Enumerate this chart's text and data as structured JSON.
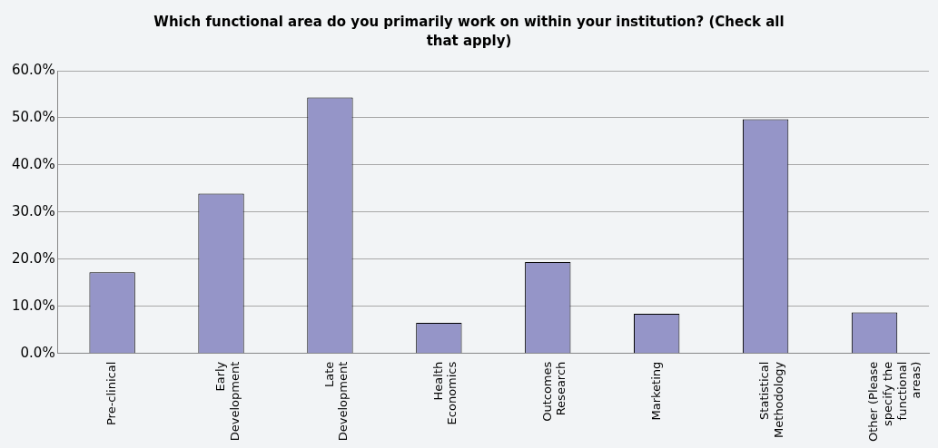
{
  "chart_data": {
    "type": "bar",
    "title": "Which functional area do you primarily work on within your institution? (Check all that apply)",
    "categories": [
      "Pre-clinical",
      "Early Development",
      "Late Development",
      "Health Economics",
      "Outcomes Research",
      "Marketing",
      "Statistical Methodology",
      "Other (Please specify the functional areas)"
    ],
    "values": [
      17.2,
      33.9,
      54.3,
      6.5,
      19.4,
      8.4,
      49.7,
      8.7
    ],
    "color": "#9595c8",
    "ylim": [
      0,
      60
    ],
    "yticks": [
      {
        "value": 0,
        "label": "0.0%"
      },
      {
        "value": 10,
        "label": "10.0%"
      },
      {
        "value": 20,
        "label": "20.0%"
      },
      {
        "value": 30,
        "label": "30.0%"
      },
      {
        "value": 40,
        "label": "40.0%"
      },
      {
        "value": 50,
        "label": "50.0%"
      },
      {
        "value": 60,
        "label": "60.0%"
      }
    ],
    "grid": "y",
    "legend": false
  }
}
